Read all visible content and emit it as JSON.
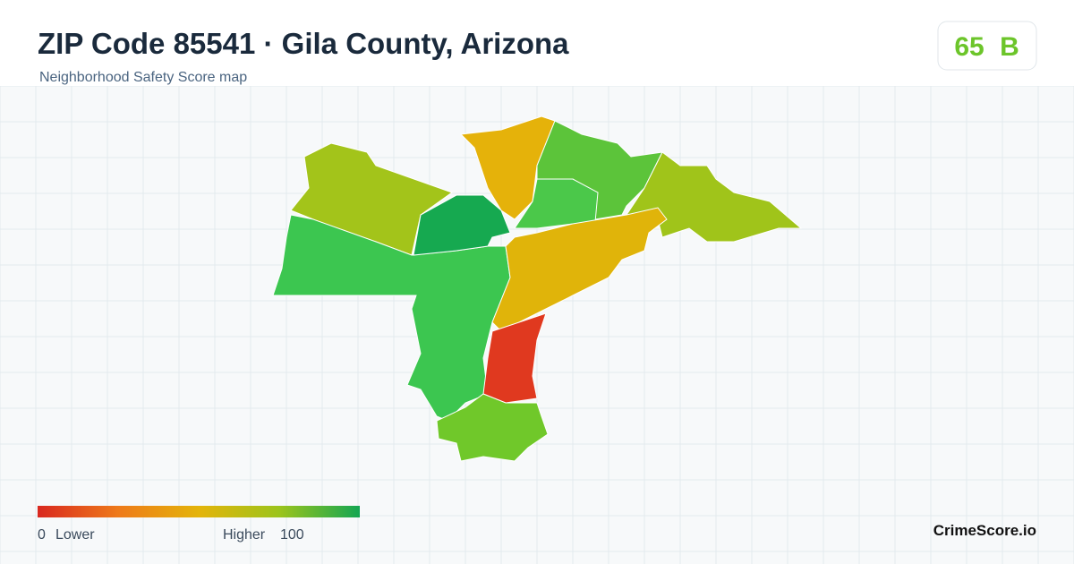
{
  "header": {
    "title": "ZIP Code 85541 · Gila County, Arizona",
    "subtitle": "Neighborhood Safety Score map"
  },
  "score": {
    "value": 65,
    "grade": "B"
  },
  "legend": {
    "min": 0,
    "min_label": "Lower",
    "max_label": "Higher",
    "max": 100
  },
  "brand": "CrimeScore.io"
}
